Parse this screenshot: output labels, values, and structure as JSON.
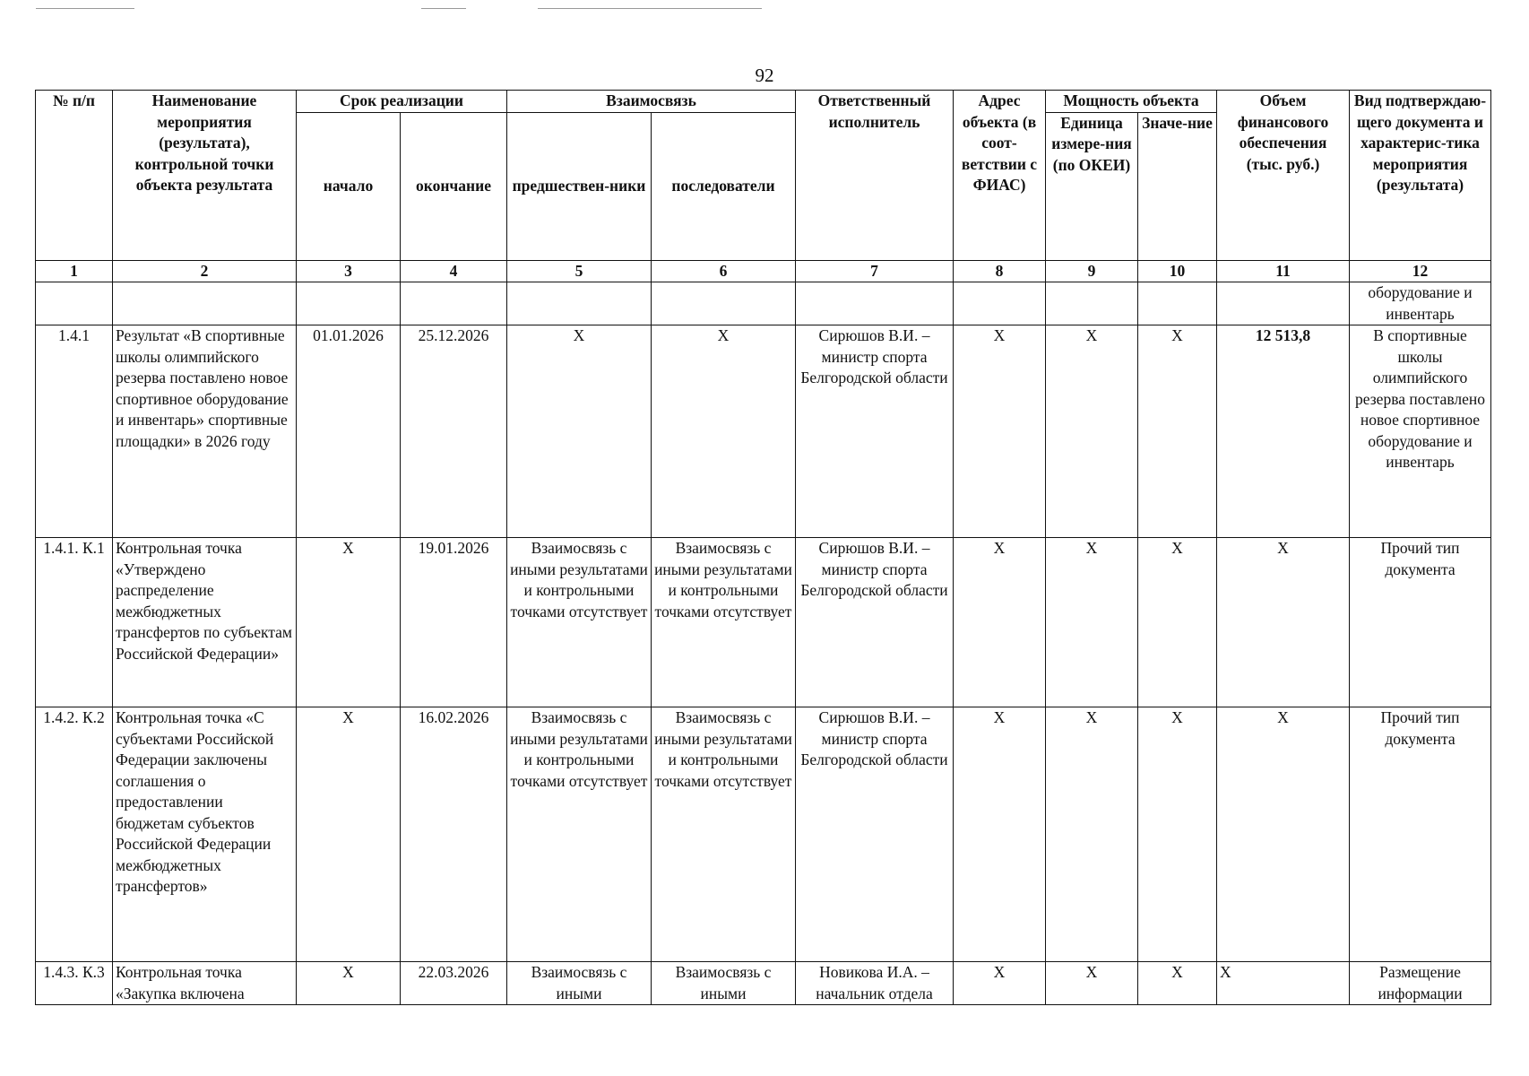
{
  "page_number": "92",
  "header": {
    "num": "№ п/п",
    "name": "Наименование мероприятия (результата), контрольной точки объекта результата",
    "period": "Срок реализации",
    "start": "начало",
    "end": "окончание",
    "relation": "Взаимосвязь",
    "predecessors": "предшествен-ники",
    "successors": "последователи",
    "responsible": "Ответственный исполнитель",
    "address": "Адрес объекта (в соот-ветствии с ФИАС)",
    "capacity": "Мощность объекта",
    "unit": "Единица измере-ния (по ОКЕИ)",
    "value": "Значе-ние",
    "funding": "Объем финансового обеспечения (тыс. руб.)",
    "doc_type": "Вид подтверждаю-щего документа и характерис-тика мероприятия (результата)"
  },
  "column_numbers": [
    "1",
    "2",
    "3",
    "4",
    "5",
    "6",
    "7",
    "8",
    "9",
    "10",
    "11",
    "12"
  ],
  "continuation": {
    "doc_type": "оборудование и инвентарь"
  },
  "rows": [
    {
      "num": "1.4.1",
      "name": "Результат «В спортивные школы олимпийского резерва поставлено новое спортивное оборудование и инвентарь» спортивные площадки» в 2026 году",
      "start": "01.01.2026",
      "end": "25.12.2026",
      "pred": "X",
      "succ": "X",
      "responsible": "Сирюшов В.И. – министр спорта Белгородской области",
      "address": "X",
      "unit": "X",
      "value": "X",
      "funding": "12 513,8",
      "doc": "В спортивные школы олимпийского резерва поставлено новое спортивное оборудование и инвентарь"
    },
    {
      "num": "1.4.1. К.1",
      "name": "Контрольная точка «Утверждено распределение межбюджетных трансфертов по субъектам Российской Федерации»",
      "start": "X",
      "end": "19.01.2026",
      "pred": "Взаимосвязь с иными результатами и контрольными точками отсутствует",
      "succ": "Взаимосвязь с иными результатами и контрольными точками отсутствует",
      "responsible": "Сирюшов В.И. – министр спорта Белгородской области",
      "address": "X",
      "unit": "X",
      "value": "X",
      "funding": "X",
      "doc": "Прочий тип документа"
    },
    {
      "num": "1.4.2. К.2",
      "name": "Контрольная точка «С субъектами Российской Федерации заключены соглашения о предоставлении бюджетам субъектов Российской Федерации межбюджетных трансфертов»",
      "start": "X",
      "end": "16.02.2026",
      "pred": "Взаимосвязь с иными результатами и контрольными точками отсутствует",
      "succ": "Взаимосвязь с иными результатами и контрольными точками отсутствует",
      "responsible": "Сирюшов В.И. – министр спорта Белгородской области",
      "address": "X",
      "unit": "X",
      "value": "X",
      "funding": "X",
      "doc": "Прочий тип документа"
    },
    {
      "num": "1.4.3. К.3",
      "name": "Контрольная точка «Закупка включена",
      "start": "X",
      "end": "22.03.2026",
      "pred": "Взаимосвязь с иными",
      "succ": "Взаимосвязь с иными",
      "responsible": "Новикова И.А. – начальник отдела",
      "address": "X",
      "unit": "X",
      "value": "X",
      "funding": "X",
      "doc": "Размещение информации"
    }
  ]
}
